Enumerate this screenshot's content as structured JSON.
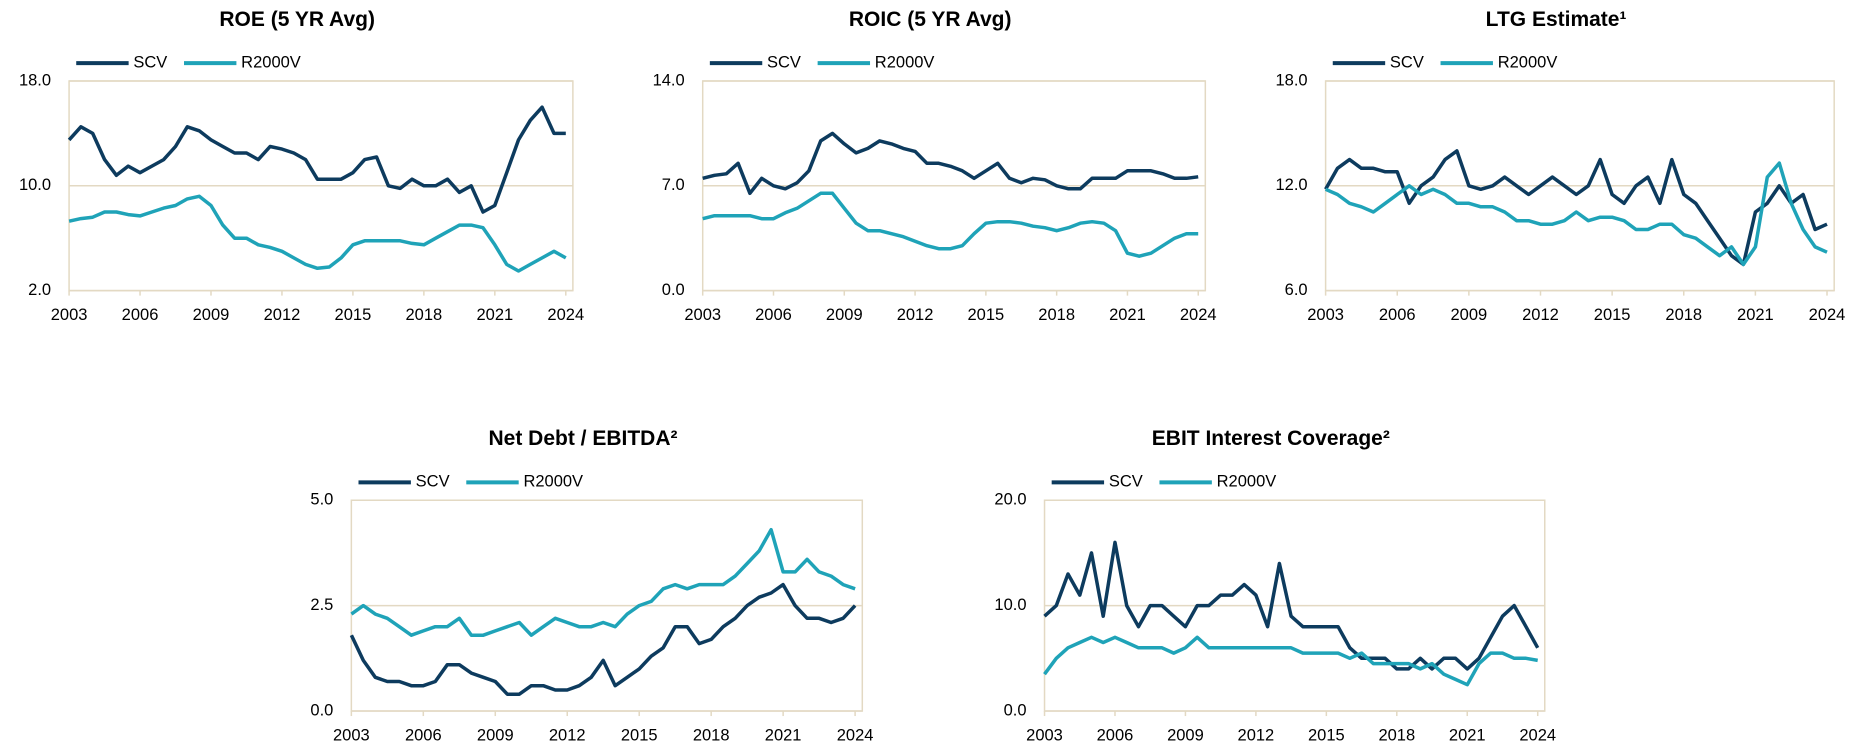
{
  "chart_data": [
    {
      "type": "line",
      "title": "ROE (5 YR Avg)",
      "x": [
        2003,
        2003.5,
        2004,
        2004.5,
        2005,
        2005.5,
        2006,
        2006.5,
        2007,
        2007.5,
        2008,
        2008.5,
        2009,
        2009.5,
        2010,
        2010.5,
        2011,
        2011.5,
        2012,
        2012.5,
        2013,
        2013.5,
        2014,
        2014.5,
        2015,
        2015.5,
        2016,
        2016.5,
        2017,
        2017.5,
        2018,
        2018.5,
        2019,
        2019.5,
        2020,
        2020.5,
        2021,
        2021.5,
        2022,
        2022.5,
        2023,
        2023.5,
        2024
      ],
      "series": [
        {
          "name": "SCV",
          "color": "#0d3b5e",
          "values": [
            13.5,
            14.5,
            14,
            12,
            10.8,
            11.5,
            11,
            11.5,
            12,
            13,
            14.5,
            14.2,
            13.5,
            13,
            12.5,
            12.5,
            12,
            13,
            12.8,
            12.5,
            12,
            10.5,
            10.5,
            10.5,
            11,
            12,
            12.2,
            10,
            9.8,
            10.5,
            10,
            10,
            10.5,
            9.5,
            10,
            8,
            8.5,
            11,
            13.5,
            15,
            16,
            14,
            14
          ]
        },
        {
          "name": "R2000V",
          "color": "#1fa3b8",
          "values": [
            7.3,
            7.5,
            7.6,
            8,
            8,
            7.8,
            7.7,
            8,
            8.3,
            8.5,
            9,
            9.2,
            8.5,
            7,
            6,
            6,
            5.5,
            5.3,
            5,
            4.5,
            4,
            3.7,
            3.8,
            4.5,
            5.5,
            5.8,
            5.8,
            5.8,
            5.8,
            5.6,
            5.5,
            6,
            6.5,
            7,
            7,
            6.8,
            5.5,
            4,
            3.5,
            4,
            4.5,
            5,
            4.5
          ]
        }
      ],
      "xlim": [
        2003,
        2024.3
      ],
      "xticks": [
        2003,
        2006,
        2009,
        2012,
        2015,
        2018,
        2021,
        2024
      ],
      "ylim": [
        2,
        18
      ],
      "yticks": [
        {
          "value": 2,
          "label": "2.0"
        },
        {
          "value": 10,
          "label": "10.0"
        },
        {
          "value": 18,
          "label": "18.0"
        }
      ],
      "grid": true,
      "legend": "top-left"
    },
    {
      "type": "line",
      "title": "ROIC (5 YR Avg)",
      "x": [
        2003,
        2003.5,
        2004,
        2004.5,
        2005,
        2005.5,
        2006,
        2006.5,
        2007,
        2007.5,
        2008,
        2008.5,
        2009,
        2009.5,
        2010,
        2010.5,
        2011,
        2011.5,
        2012,
        2012.5,
        2013,
        2013.5,
        2014,
        2014.5,
        2015,
        2015.5,
        2016,
        2016.5,
        2017,
        2017.5,
        2018,
        2018.5,
        2019,
        2019.5,
        2020,
        2020.5,
        2021,
        2021.5,
        2022,
        2022.5,
        2023,
        2023.5,
        2024
      ],
      "series": [
        {
          "name": "SCV",
          "color": "#0d3b5e",
          "values": [
            7.5,
            7.7,
            7.8,
            8.5,
            6.5,
            7.5,
            7,
            6.8,
            7.2,
            8,
            10,
            10.5,
            9.8,
            9.2,
            9.5,
            10,
            9.8,
            9.5,
            9.3,
            8.5,
            8.5,
            8.3,
            8,
            7.5,
            8,
            8.5,
            7.5,
            7.2,
            7.5,
            7.4,
            7,
            6.8,
            6.8,
            7.5,
            7.5,
            7.5,
            8,
            8,
            8,
            7.8,
            7.5,
            7.5,
            7.6
          ]
        },
        {
          "name": "R2000V",
          "color": "#1fa3b8",
          "values": [
            4.8,
            5,
            5,
            5,
            5,
            4.8,
            4.8,
            5.2,
            5.5,
            6,
            6.5,
            6.5,
            5.5,
            4.5,
            4,
            4,
            3.8,
            3.6,
            3.3,
            3,
            2.8,
            2.8,
            3,
            3.8,
            4.5,
            4.6,
            4.6,
            4.5,
            4.3,
            4.2,
            4,
            4.2,
            4.5,
            4.6,
            4.5,
            4,
            2.5,
            2.3,
            2.5,
            3,
            3.5,
            3.8,
            3.8
          ]
        }
      ],
      "xlim": [
        2003,
        2024.3
      ],
      "xticks": [
        2003,
        2006,
        2009,
        2012,
        2015,
        2018,
        2021,
        2024
      ],
      "ylim": [
        0,
        14
      ],
      "yticks": [
        {
          "value": 0,
          "label": "0.0"
        },
        {
          "value": 7,
          "label": "7.0"
        },
        {
          "value": 14,
          "label": "14.0"
        }
      ],
      "grid": true,
      "legend": "top-left"
    },
    {
      "type": "line",
      "title": "LTG Estimate¹",
      "x": [
        2003,
        2003.5,
        2004,
        2004.5,
        2005,
        2005.5,
        2006,
        2006.5,
        2007,
        2007.5,
        2008,
        2008.5,
        2009,
        2009.5,
        2010,
        2010.5,
        2011,
        2011.5,
        2012,
        2012.5,
        2013,
        2013.5,
        2014,
        2014.5,
        2015,
        2015.5,
        2016,
        2016.5,
        2017,
        2017.5,
        2018,
        2018.5,
        2019,
        2019.5,
        2020,
        2020.5,
        2021,
        2021.5,
        2022,
        2022.5,
        2023,
        2023.5,
        2024
      ],
      "series": [
        {
          "name": "SCV",
          "color": "#0d3b5e",
          "values": [
            11.8,
            13,
            13.5,
            13,
            13,
            12.8,
            12.8,
            11,
            12,
            12.5,
            13.5,
            14,
            12,
            11.8,
            12,
            12.5,
            12,
            11.5,
            12,
            12.5,
            12,
            11.5,
            12,
            13.5,
            11.5,
            11,
            12,
            12.5,
            11,
            13.5,
            11.5,
            11,
            10,
            9,
            8,
            7.5,
            10.5,
            11,
            12,
            11,
            11.5,
            9.5,
            9.8
          ]
        },
        {
          "name": "R2000V",
          "color": "#1fa3b8",
          "values": [
            11.8,
            11.5,
            11,
            10.8,
            10.5,
            11,
            11.5,
            12,
            11.5,
            11.8,
            11.5,
            11,
            11,
            10.8,
            10.8,
            10.5,
            10,
            10,
            9.8,
            9.8,
            10,
            10.5,
            10,
            10.2,
            10.2,
            10,
            9.5,
            9.5,
            9.8,
            9.8,
            9.2,
            9,
            8.5,
            8,
            8.5,
            7.5,
            8.5,
            12.5,
            13.3,
            11,
            9.5,
            8.5,
            8.2
          ]
        }
      ],
      "xlim": [
        2003,
        2024.3
      ],
      "xticks": [
        2003,
        2006,
        2009,
        2012,
        2015,
        2018,
        2021,
        2024
      ],
      "ylim": [
        6,
        18
      ],
      "yticks": [
        {
          "value": 6,
          "label": "6.0"
        },
        {
          "value": 12,
          "label": "12.0"
        },
        {
          "value": 18,
          "label": "18.0"
        }
      ],
      "grid": true,
      "legend": "top-left"
    },
    {
      "type": "line",
      "title": "Net Debt / EBITDA²",
      "x": [
        2003,
        2003.5,
        2004,
        2004.5,
        2005,
        2005.5,
        2006,
        2006.5,
        2007,
        2007.5,
        2008,
        2008.5,
        2009,
        2009.5,
        2010,
        2010.5,
        2011,
        2011.5,
        2012,
        2012.5,
        2013,
        2013.5,
        2014,
        2014.5,
        2015,
        2015.5,
        2016,
        2016.5,
        2017,
        2017.5,
        2018,
        2018.5,
        2019,
        2019.5,
        2020,
        2020.5,
        2021,
        2021.5,
        2022,
        2022.5,
        2023,
        2023.5,
        2024
      ],
      "series": [
        {
          "name": "SCV",
          "color": "#0d3b5e",
          "values": [
            1.8,
            1.2,
            0.8,
            0.7,
            0.7,
            0.6,
            0.6,
            0.7,
            1.1,
            1.1,
            0.9,
            0.8,
            0.7,
            0.4,
            0.4,
            0.6,
            0.6,
            0.5,
            0.5,
            0.6,
            0.8,
            1.2,
            0.6,
            0.8,
            1,
            1.3,
            1.5,
            2,
            2,
            1.6,
            1.7,
            2,
            2.2,
            2.5,
            2.7,
            2.8,
            3,
            2.5,
            2.2,
            2.2,
            2.1,
            2.2,
            2.5
          ]
        },
        {
          "name": "R2000V",
          "color": "#1fa3b8",
          "values": [
            2.3,
            2.5,
            2.3,
            2.2,
            2,
            1.8,
            1.9,
            2,
            2,
            2.2,
            1.8,
            1.8,
            1.9,
            2,
            2.1,
            1.8,
            2,
            2.2,
            2.1,
            2,
            2,
            2.1,
            2,
            2.3,
            2.5,
            2.6,
            2.9,
            3,
            2.9,
            3,
            3,
            3,
            3.2,
            3.5,
            3.8,
            4.3,
            3.3,
            3.3,
            3.6,
            3.3,
            3.2,
            3,
            2.9
          ]
        }
      ],
      "xlim": [
        2003,
        2024.3
      ],
      "xticks": [
        2003,
        2006,
        2009,
        2012,
        2015,
        2018,
        2021,
        2024
      ],
      "ylim": [
        0,
        5
      ],
      "yticks": [
        {
          "value": 0,
          "label": "0.0"
        },
        {
          "value": 2.5,
          "label": "2.5"
        },
        {
          "value": 5,
          "label": "5.0"
        }
      ],
      "grid": true,
      "legend": "top-left"
    },
    {
      "type": "line",
      "title": "EBIT Interest Coverage²",
      "x": [
        2003,
        2003.5,
        2004,
        2004.5,
        2005,
        2005.5,
        2006,
        2006.5,
        2007,
        2007.5,
        2008,
        2008.5,
        2009,
        2009.5,
        2010,
        2010.5,
        2011,
        2011.5,
        2012,
        2012.5,
        2013,
        2013.5,
        2014,
        2014.5,
        2015,
        2015.5,
        2016,
        2016.5,
        2017,
        2017.5,
        2018,
        2018.5,
        2019,
        2019.5,
        2020,
        2020.5,
        2021,
        2021.5,
        2022,
        2022.5,
        2023,
        2023.5,
        2024
      ],
      "series": [
        {
          "name": "SCV",
          "color": "#0d3b5e",
          "values": [
            9,
            10,
            13,
            11,
            15,
            9,
            16,
            10,
            8,
            10,
            10,
            9,
            8,
            10,
            10,
            11,
            11,
            12,
            11,
            8,
            14,
            9,
            8,
            8,
            8,
            8,
            6,
            5,
            5,
            5,
            4,
            4,
            5,
            4,
            5,
            5,
            4,
            5,
            7,
            9,
            10,
            8,
            6
          ]
        },
        {
          "name": "R2000V",
          "color": "#1fa3b8",
          "values": [
            3.5,
            5,
            6,
            6.5,
            7,
            6.5,
            7,
            6.5,
            6,
            6,
            6,
            5.5,
            6,
            7,
            6,
            6,
            6,
            6,
            6,
            6,
            6,
            6,
            5.5,
            5.5,
            5.5,
            5.5,
            5,
            5.5,
            4.5,
            4.5,
            4.5,
            4.5,
            4,
            4.5,
            3.5,
            3,
            2.5,
            4.5,
            5.5,
            5.5,
            5,
            5,
            4.8
          ]
        }
      ],
      "xlim": [
        2003,
        2024.3
      ],
      "xticks": [
        2003,
        2006,
        2009,
        2012,
        2015,
        2018,
        2021,
        2024
      ],
      "ylim": [
        0,
        20
      ],
      "yticks": [
        {
          "value": 0,
          "label": "0.0"
        },
        {
          "value": 10,
          "label": "10.0"
        },
        {
          "value": 20,
          "label": "20.0"
        }
      ],
      "grid": true,
      "legend": "top-left"
    }
  ]
}
